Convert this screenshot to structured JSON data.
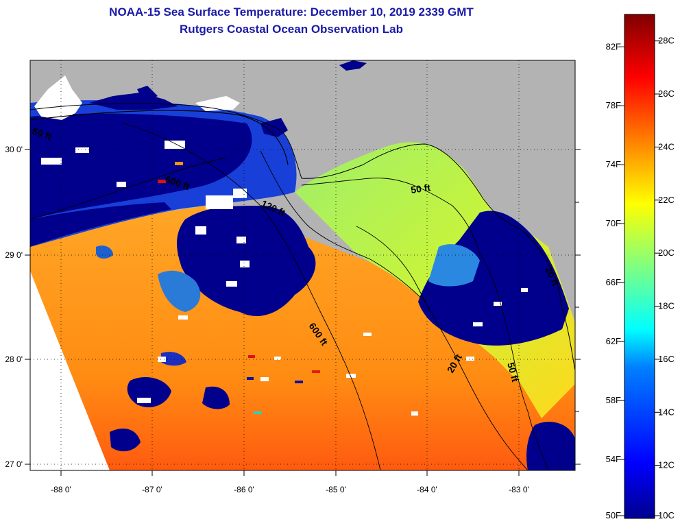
{
  "header": {
    "title": "NOAA-15 Sea Surface Temperature:  December 10, 2019 2339 GMT",
    "subtitle": "Rutgers Coastal Ocean Observation Lab"
  },
  "map": {
    "region": "Florida Big Bend / NE Gulf of Mexico",
    "lon_ticks": [
      "-88 0'",
      "-87 0'",
      "-86 0'",
      "-85 0'",
      "-84 0'",
      "-83 0'"
    ],
    "lat_ticks": [
      "30 0'",
      "29 0'",
      "28 0'",
      "27 0'"
    ],
    "contour_labels": [
      "50 ft",
      "20 ft",
      "120 ft",
      "600 ft",
      "50 ft",
      "600 ft",
      "50 ft",
      "20 ft"
    ],
    "colors": {
      "land": "#b3b3b3",
      "cloud": "#ffffff",
      "cold": "#00008c",
      "warm": "#ff8a10"
    }
  },
  "colorbar": {
    "fahrenheit_labels": [
      "82F",
      "78F",
      "74F",
      "70F",
      "66F",
      "62F",
      "58F",
      "54F",
      "50F"
    ],
    "celsius_labels": [
      "28C",
      "26C",
      "24C",
      "22C",
      "20C",
      "18C",
      "16C",
      "14C",
      "12C",
      "10C"
    ],
    "range_c": [
      10,
      29
    ]
  }
}
